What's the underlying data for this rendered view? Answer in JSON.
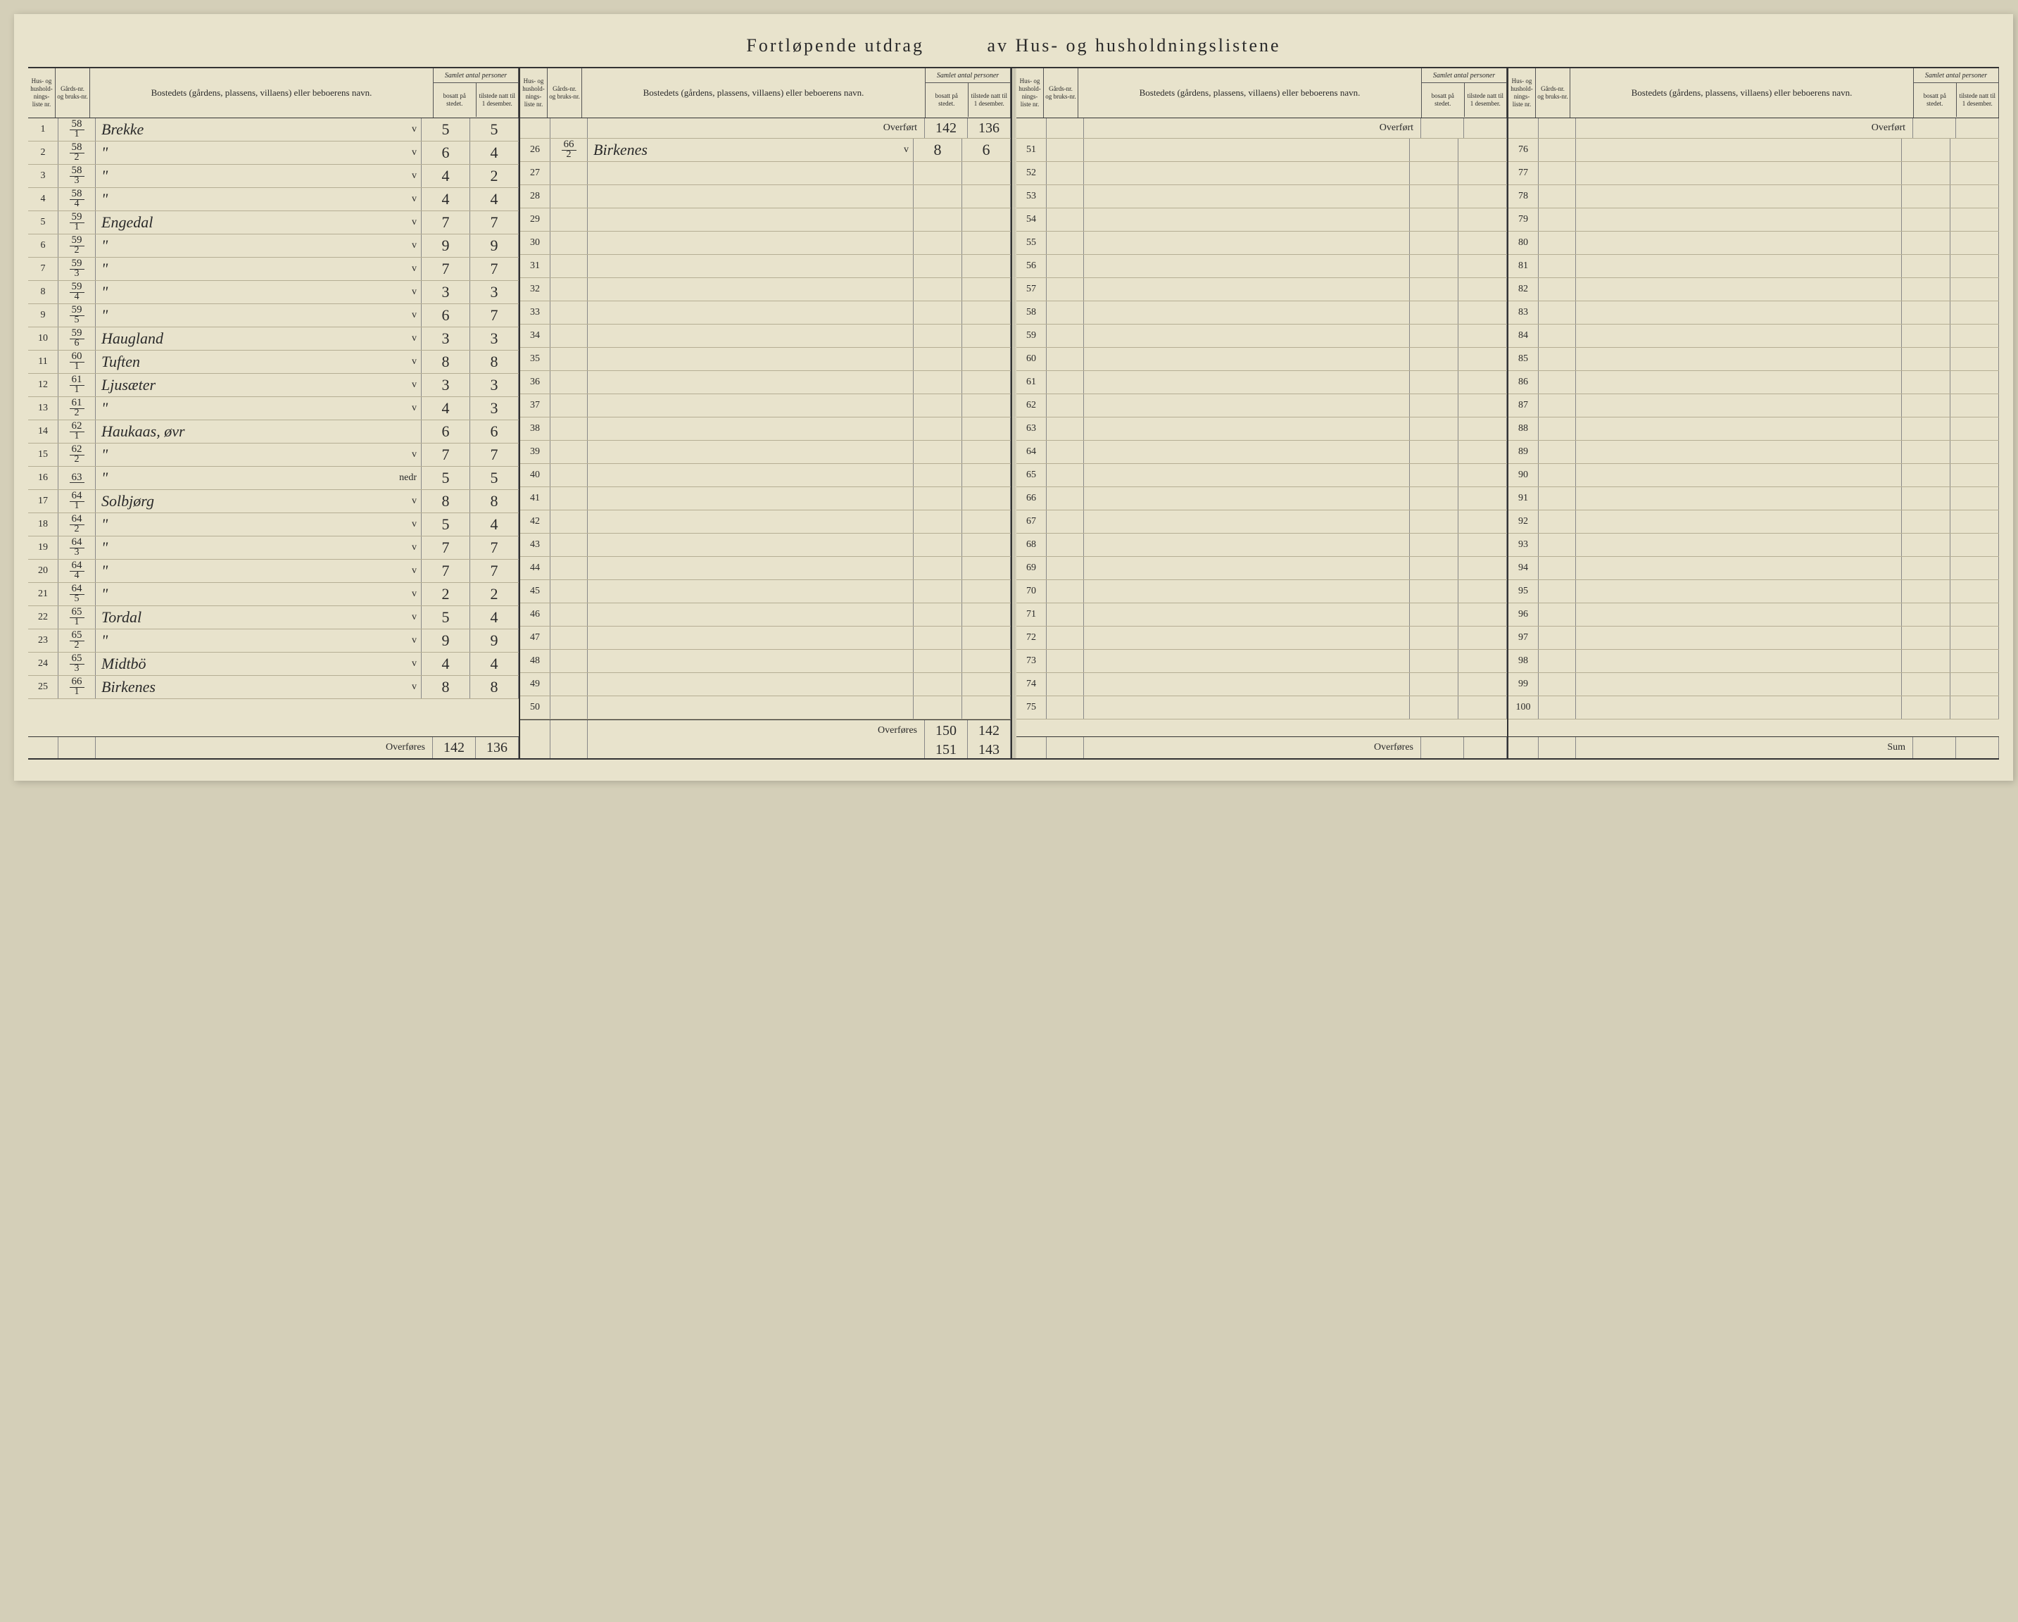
{
  "title_left": "Fortløpende utdrag",
  "title_right": "av Hus- og husholdningslistene",
  "headers": {
    "liste": "Hus- og hushold-nings-liste nr.",
    "gards": "Gårds-nr. og bruks-nr.",
    "bosted": "Bostedets (gårdens, plassens, villaens) eller beboerens navn.",
    "samlet": "Samlet antal personer",
    "bosatt": "bosatt på stedet.",
    "tilstede": "tilstede natt til 1 desember."
  },
  "overfort_label": "Overført",
  "overfores_label": "Overføres",
  "sum_label": "Sum",
  "col1": {
    "rows": [
      {
        "n": "1",
        "g1": "58",
        "g2": "1",
        "name": "Brekke",
        "mark": "v",
        "b": "5",
        "t": "5"
      },
      {
        "n": "2",
        "g1": "58",
        "g2": "2",
        "name": "\"",
        "mark": "v",
        "b": "6",
        "t": "4"
      },
      {
        "n": "3",
        "g1": "58",
        "g2": "3",
        "name": "\"",
        "mark": "v",
        "b": "4",
        "t": "2"
      },
      {
        "n": "4",
        "g1": "58",
        "g2": "4",
        "name": "\"",
        "mark": "v",
        "b": "4",
        "t": "4"
      },
      {
        "n": "5",
        "g1": "59",
        "g2": "1",
        "name": "Engedal",
        "mark": "v",
        "b": "7",
        "t": "7"
      },
      {
        "n": "6",
        "g1": "59",
        "g2": "2",
        "name": "\"",
        "mark": "v",
        "b": "9",
        "t": "9"
      },
      {
        "n": "7",
        "g1": "59",
        "g2": "3",
        "name": "\"",
        "mark": "v",
        "b": "7",
        "t": "7"
      },
      {
        "n": "8",
        "g1": "59",
        "g2": "4",
        "name": "\"",
        "mark": "v",
        "b": "3",
        "t": "3"
      },
      {
        "n": "9",
        "g1": "59",
        "g2": "5",
        "name": "\"",
        "mark": "v",
        "b": "6",
        "t": "7"
      },
      {
        "n": "10",
        "g1": "59",
        "g2": "6",
        "name": "Haugland",
        "mark": "v",
        "b": "3",
        "t": "3"
      },
      {
        "n": "11",
        "g1": "60",
        "g2": "1",
        "name": "Tuften",
        "mark": "v",
        "b": "8",
        "t": "8"
      },
      {
        "n": "12",
        "g1": "61",
        "g2": "1",
        "name": "Ljusæter",
        "mark": "v",
        "b": "3",
        "t": "3"
      },
      {
        "n": "13",
        "g1": "61",
        "g2": "2",
        "name": "\"",
        "mark": "v",
        "b": "4",
        "t": "3"
      },
      {
        "n": "14",
        "g1": "62",
        "g2": "1",
        "name": "Haukaas, øvr",
        "mark": "",
        "b": "6",
        "t": "6"
      },
      {
        "n": "15",
        "g1": "62",
        "g2": "2",
        "name": "\"",
        "mark": "v",
        "b": "7",
        "t": "7"
      },
      {
        "n": "16",
        "g1": "63",
        "g2": "",
        "name": "\"",
        "mark": "nedr",
        "b": "5",
        "t": "5"
      },
      {
        "n": "17",
        "g1": "64",
        "g2": "1",
        "name": "Solbjørg",
        "mark": "v",
        "b": "8",
        "t": "8"
      },
      {
        "n": "18",
        "g1": "64",
        "g2": "2",
        "name": "\"",
        "mark": "v",
        "b": "5",
        "t": "4"
      },
      {
        "n": "19",
        "g1": "64",
        "g2": "3",
        "name": "\"",
        "mark": "v",
        "b": "7",
        "t": "7"
      },
      {
        "n": "20",
        "g1": "64",
        "g2": "4",
        "name": "\"",
        "mark": "v",
        "b": "7",
        "t": "7"
      },
      {
        "n": "21",
        "g1": "64",
        "g2": "5",
        "name": "\"",
        "mark": "v",
        "b": "2",
        "t": "2"
      },
      {
        "n": "22",
        "g1": "65",
        "g2": "1",
        "name": "Tordal",
        "mark": "v",
        "b": "5",
        "t": "4"
      },
      {
        "n": "23",
        "g1": "65",
        "g2": "2",
        "name": "\"",
        "mark": "v",
        "b": "9",
        "t": "9"
      },
      {
        "n": "24",
        "g1": "65",
        "g2": "3",
        "name": "Midtbö",
        "mark": "v",
        "b": "4",
        "t": "4"
      },
      {
        "n": "25",
        "g1": "66",
        "g2": "1",
        "name": "Birkenes",
        "mark": "v",
        "b": "8",
        "t": "8"
      }
    ],
    "footer_b": "142",
    "footer_t": "136"
  },
  "col2": {
    "overfort_b": "142",
    "overfort_t": "136",
    "rows": [
      {
        "n": "26",
        "g1": "66",
        "g2": "2",
        "name": "Birkenes",
        "mark": "v",
        "b": "8",
        "t": "6"
      },
      {
        "n": "27"
      },
      {
        "n": "28"
      },
      {
        "n": "29"
      },
      {
        "n": "30"
      },
      {
        "n": "31"
      },
      {
        "n": "32"
      },
      {
        "n": "33"
      },
      {
        "n": "34"
      },
      {
        "n": "35"
      },
      {
        "n": "36"
      },
      {
        "n": "37"
      },
      {
        "n": "38"
      },
      {
        "n": "39"
      },
      {
        "n": "40"
      },
      {
        "n": "41"
      },
      {
        "n": "42"
      },
      {
        "n": "43"
      },
      {
        "n": "44"
      },
      {
        "n": "45"
      },
      {
        "n": "46"
      },
      {
        "n": "47"
      },
      {
        "n": "48"
      },
      {
        "n": "49"
      },
      {
        "n": "50"
      }
    ],
    "footer_b": "150",
    "footer_t": "142",
    "footer2_b": "151",
    "footer2_t": "143"
  },
  "col3": {
    "rows": [
      {
        "n": "51"
      },
      {
        "n": "52"
      },
      {
        "n": "53"
      },
      {
        "n": "54"
      },
      {
        "n": "55"
      },
      {
        "n": "56"
      },
      {
        "n": "57"
      },
      {
        "n": "58"
      },
      {
        "n": "59"
      },
      {
        "n": "60"
      },
      {
        "n": "61"
      },
      {
        "n": "62"
      },
      {
        "n": "63"
      },
      {
        "n": "64"
      },
      {
        "n": "65"
      },
      {
        "n": "66"
      },
      {
        "n": "67"
      },
      {
        "n": "68"
      },
      {
        "n": "69"
      },
      {
        "n": "70"
      },
      {
        "n": "71"
      },
      {
        "n": "72"
      },
      {
        "n": "73"
      },
      {
        "n": "74"
      },
      {
        "n": "75"
      }
    ]
  },
  "col4": {
    "rows": [
      {
        "n": "76"
      },
      {
        "n": "77"
      },
      {
        "n": "78"
      },
      {
        "n": "79"
      },
      {
        "n": "80"
      },
      {
        "n": "81"
      },
      {
        "n": "82"
      },
      {
        "n": "83"
      },
      {
        "n": "84"
      },
      {
        "n": "85"
      },
      {
        "n": "86"
      },
      {
        "n": "87"
      },
      {
        "n": "88"
      },
      {
        "n": "89"
      },
      {
        "n": "90"
      },
      {
        "n": "91"
      },
      {
        "n": "92"
      },
      {
        "n": "93"
      },
      {
        "n": "94"
      },
      {
        "n": "95"
      },
      {
        "n": "96"
      },
      {
        "n": "97"
      },
      {
        "n": "98"
      },
      {
        "n": "99"
      },
      {
        "n": "100"
      }
    ]
  },
  "colors": {
    "paper": "#e8e3cc",
    "ink": "#2a2a2a",
    "rule_light": "#b5ae94",
    "rule_dark": "#333333"
  }
}
